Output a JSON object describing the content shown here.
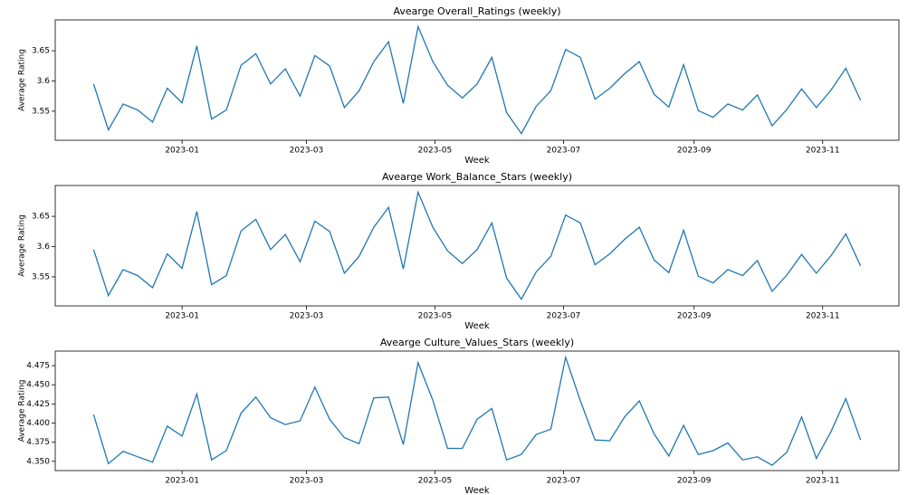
{
  "chart_data": [
    {
      "type": "line",
      "title": "Avearge Overall_Ratings (weekly)",
      "x_label": "Week",
      "y_label": "Average Rating",
      "categories": [
        null,
        null,
        null,
        null,
        null,
        null,
        null,
        null,
        null,
        null,
        null,
        null,
        null,
        null,
        null,
        null,
        null,
        null,
        null,
        null,
        null,
        null,
        null,
        null,
        null,
        null,
        null,
        null,
        null,
        null,
        null,
        null,
        null,
        null,
        null,
        null,
        null,
        null,
        null,
        null,
        null,
        null,
        null,
        null,
        null,
        null,
        null,
        null,
        null,
        null,
        null,
        null,
        null
      ],
      "series": [
        {
          "color": "#1f77b4",
          "values": [
            3.595,
            3.519,
            3.562,
            3.552,
            3.532,
            3.588,
            3.564,
            3.658,
            3.537,
            3.552,
            3.626,
            3.645,
            3.595,
            3.62,
            3.575,
            3.642,
            3.625,
            3.556,
            3.584,
            3.632,
            3.665,
            3.563,
            3.69,
            3.632,
            3.593,
            3.572,
            3.595,
            3.639,
            3.548,
            3.513,
            3.558,
            3.584,
            3.652,
            3.639,
            3.57,
            3.588,
            3.612,
            3.632,
            3.578,
            3.557,
            3.627,
            3.551,
            3.54,
            3.562,
            3.552,
            3.577,
            3.526,
            3.553,
            3.587,
            3.556,
            3.585,
            3.621,
            3.568
          ]
        }
      ],
      "xlim": [
        -2.6,
        54.6
      ],
      "xticks": [
        {
          "value": 6.0,
          "label": "2023-01"
        },
        {
          "value": 14.43,
          "label": "2023-03"
        },
        {
          "value": 23.14,
          "label": "2023-05"
        },
        {
          "value": 31.86,
          "label": "2023-07"
        },
        {
          "value": 40.71,
          "label": "2023-09"
        },
        {
          "value": 49.43,
          "label": "2023-11"
        }
      ],
      "ylim": [
        3.502,
        3.701
      ],
      "yticks": [
        3.55,
        3.6,
        3.65
      ],
      "grid": false
    },
    {
      "type": "line",
      "title": "Avearge Work_Balance_Stars (weekly)",
      "x_label": "Week",
      "y_label": "Average Rating",
      "categories": [
        null,
        null,
        null,
        null,
        null,
        null,
        null,
        null,
        null,
        null,
        null,
        null,
        null,
        null,
        null,
        null,
        null,
        null,
        null,
        null,
        null,
        null,
        null,
        null,
        null,
        null,
        null,
        null,
        null,
        null,
        null,
        null,
        null,
        null,
        null,
        null,
        null,
        null,
        null,
        null,
        null,
        null,
        null,
        null,
        null,
        null,
        null,
        null,
        null,
        null,
        null,
        null,
        null
      ],
      "series": [
        {
          "color": "#1f77b4",
          "values": [
            3.595,
            3.519,
            3.562,
            3.552,
            3.532,
            3.588,
            3.564,
            3.658,
            3.537,
            3.552,
            3.626,
            3.645,
            3.595,
            3.62,
            3.575,
            3.642,
            3.625,
            3.556,
            3.584,
            3.632,
            3.665,
            3.563,
            3.69,
            3.632,
            3.593,
            3.572,
            3.595,
            3.639,
            3.548,
            3.513,
            3.558,
            3.584,
            3.652,
            3.639,
            3.57,
            3.588,
            3.612,
            3.632,
            3.578,
            3.557,
            3.627,
            3.551,
            3.54,
            3.562,
            3.552,
            3.577,
            3.526,
            3.553,
            3.587,
            3.556,
            3.585,
            3.621,
            3.568
          ]
        }
      ],
      "xlim": [
        -2.6,
        54.6
      ],
      "xticks": [
        {
          "value": 6.0,
          "label": "2023-01"
        },
        {
          "value": 14.43,
          "label": "2023-03"
        },
        {
          "value": 23.14,
          "label": "2023-05"
        },
        {
          "value": 31.86,
          "label": "2023-07"
        },
        {
          "value": 40.71,
          "label": "2023-09"
        },
        {
          "value": 49.43,
          "label": "2023-11"
        }
      ],
      "ylim": [
        3.502,
        3.701
      ],
      "yticks": [
        3.55,
        3.6,
        3.65
      ],
      "grid": false
    },
    {
      "type": "line",
      "title": "Avearge Culture_Values_Stars (weekly)",
      "x_label": "Week",
      "y_label": "Average Rating",
      "categories": [
        null,
        null,
        null,
        null,
        null,
        null,
        null,
        null,
        null,
        null,
        null,
        null,
        null,
        null,
        null,
        null,
        null,
        null,
        null,
        null,
        null,
        null,
        null,
        null,
        null,
        null,
        null,
        null,
        null,
        null,
        null,
        null,
        null,
        null,
        null,
        null,
        null,
        null,
        null,
        null,
        null,
        null,
        null,
        null,
        null,
        null,
        null,
        null,
        null,
        null,
        null,
        null,
        null
      ],
      "series": [
        {
          "color": "#1f77b4",
          "values": [
            4.411,
            4.347,
            4.363,
            4.356,
            4.349,
            4.396,
            4.383,
            4.438,
            4.352,
            4.364,
            4.413,
            4.434,
            4.407,
            4.398,
            4.403,
            4.447,
            4.405,
            4.381,
            4.373,
            4.433,
            4.434,
            4.372,
            4.479,
            4.43,
            4.367,
            4.367,
            4.405,
            4.419,
            4.352,
            4.359,
            4.385,
            4.392,
            4.486,
            4.429,
            4.378,
            4.377,
            4.408,
            4.429,
            4.386,
            4.357,
            4.397,
            4.359,
            4.364,
            4.374,
            4.352,
            4.356,
            4.345,
            4.362,
            4.408,
            4.354,
            4.389,
            4.432,
            4.378
          ]
        }
      ],
      "xlim": [
        -2.6,
        54.6
      ],
      "xticks": [
        {
          "value": 6.0,
          "label": "2023-01"
        },
        {
          "value": 14.43,
          "label": "2023-03"
        },
        {
          "value": 23.14,
          "label": "2023-05"
        },
        {
          "value": 31.86,
          "label": "2023-07"
        },
        {
          "value": 40.71,
          "label": "2023-09"
        },
        {
          "value": 49.43,
          "label": "2023-11"
        }
      ],
      "ylim": [
        4.338,
        4.494
      ],
      "yticks": [
        {
          "value": 4.35,
          "label": "4.350"
        },
        {
          "value": 4.375,
          "label": "4.375"
        },
        {
          "value": 4.4,
          "label": "4.400"
        },
        {
          "value": 4.425,
          "label": "4.425"
        },
        {
          "value": 4.45,
          "label": "4.450"
        },
        {
          "value": 4.475,
          "label": "4.475"
        }
      ],
      "grid": false
    }
  ]
}
